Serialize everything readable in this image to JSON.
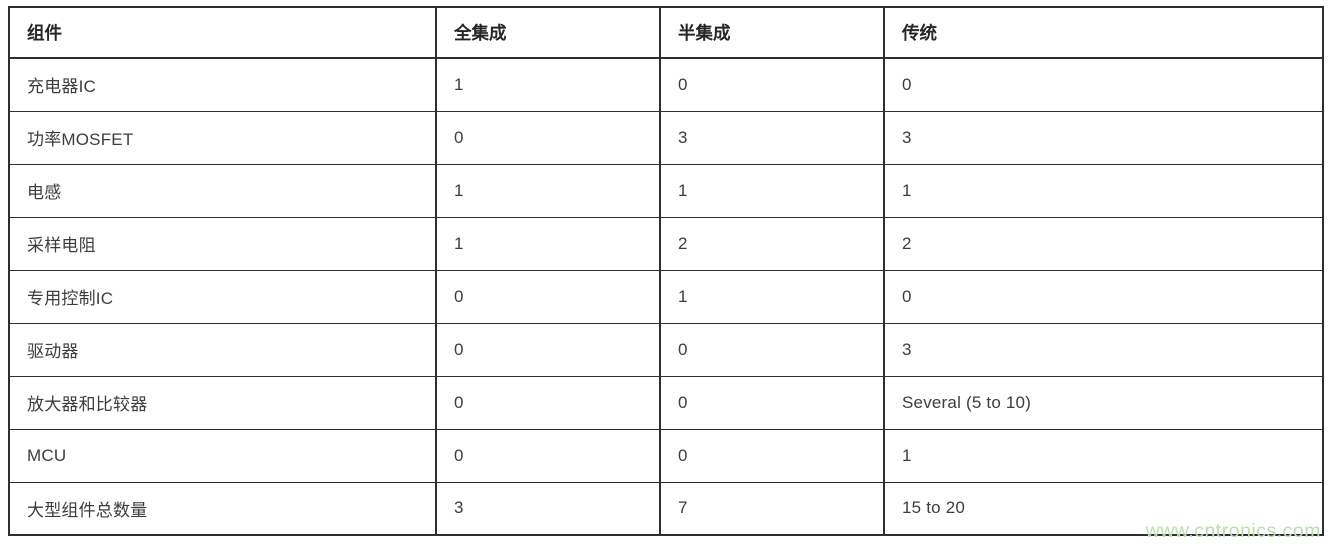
{
  "table": {
    "columns": [
      "组件",
      "全集成",
      "半集成",
      "传统"
    ],
    "rows": [
      [
        "充电器IC",
        "1",
        "0",
        "0"
      ],
      [
        "功率MOSFET",
        "0",
        "3",
        "3"
      ],
      [
        "电感",
        "1",
        "1",
        "1"
      ],
      [
        "采样电阻",
        "1",
        "2",
        "2"
      ],
      [
        "专用控制IC",
        "0",
        "1",
        "0"
      ],
      [
        "驱动器",
        "0",
        "0",
        "3"
      ],
      [
        "放大器和比较器",
        "0",
        "0",
        "Several (5 to 10)"
      ],
      [
        "MCU",
        "0",
        "0",
        "1"
      ],
      [
        "大型组件总数量",
        "3",
        "7",
        "15 to 20"
      ]
    ]
  },
  "watermark": {
    "text": "www.cntronics.com"
  },
  "colors": {
    "border": "#2e2e2e",
    "body_text": "#3d3d3d",
    "header_text": "#262626",
    "watermark": "#b9e0ae",
    "background": "#ffffff"
  }
}
